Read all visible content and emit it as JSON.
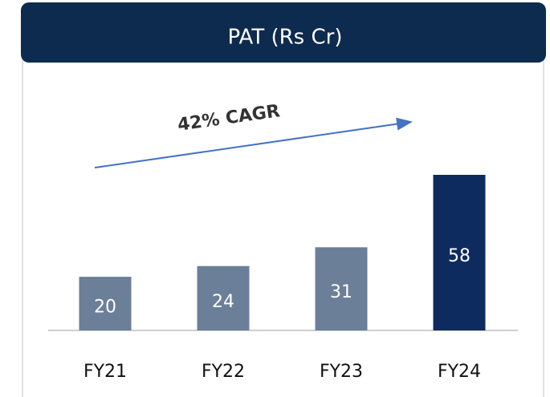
{
  "chart_data": {
    "type": "bar",
    "title": "PAT (Rs Cr)",
    "categories": [
      "FY21",
      "FY22",
      "FY23",
      "FY24"
    ],
    "values": [
      20,
      24,
      31,
      58
    ],
    "colors": [
      "#6b7f99",
      "#6b7f99",
      "#6b7f99",
      "#0d2b5e"
    ],
    "annotation": "42% CAGR"
  }
}
